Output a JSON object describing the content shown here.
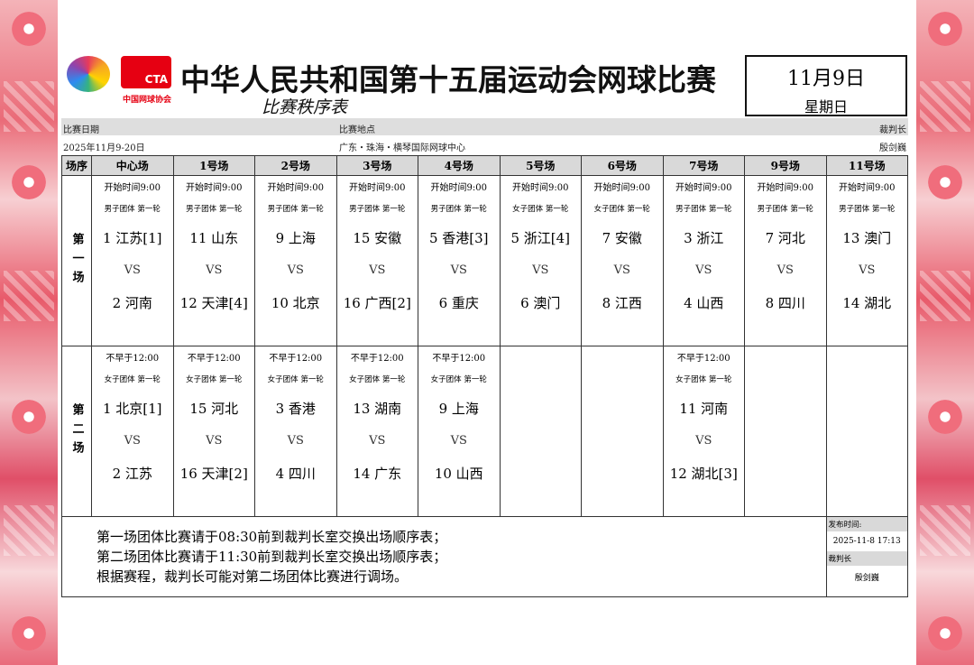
{
  "header": {
    "title": "中华人民共和国第十五届运动会网球比赛",
    "subtitle": "比赛秩序表",
    "date": "11月9日",
    "weekday": "星期日",
    "cta_logo": {
      "abbr": "CTA",
      "name": "中国网球协会"
    }
  },
  "info": {
    "labels": [
      "比赛日期",
      "比赛地点",
      "裁判长"
    ],
    "values": [
      "2025年11月9-20日",
      "广东・珠海・横琴国际网球中心",
      "殷剑巍"
    ]
  },
  "table": {
    "header": [
      "场序",
      "中心场",
      "1号场",
      "2号场",
      "3号场",
      "4号场",
      "5号场",
      "6号场",
      "7号场",
      "9号场",
      "11号场"
    ],
    "sessions": [
      {
        "label": "第一场",
        "matches": [
          {
            "time": "开始时间9:00",
            "event": "男子团体 第一轮",
            "home": "1 江苏[1]",
            "vs": "VS",
            "away": "2 河南"
          },
          {
            "time": "开始时间9:00",
            "event": "男子团体 第一轮",
            "home": "11 山东",
            "vs": "VS",
            "away": "12 天津[4]"
          },
          {
            "time": "开始时间9:00",
            "event": "男子团体 第一轮",
            "home": "9 上海",
            "vs": "VS",
            "away": "10 北京"
          },
          {
            "time": "开始时间9:00",
            "event": "男子团体 第一轮",
            "home": "15 安徽",
            "vs": "VS",
            "away": "16 广西[2]"
          },
          {
            "time": "开始时间9:00",
            "event": "男子团体 第一轮",
            "home": "5 香港[3]",
            "vs": "VS",
            "away": "6 重庆"
          },
          {
            "time": "开始时间9:00",
            "event": "女子团体 第一轮",
            "home": "5 浙江[4]",
            "vs": "VS",
            "away": "6 澳门"
          },
          {
            "time": "开始时间9:00",
            "event": "女子团体 第一轮",
            "home": "7 安徽",
            "vs": "VS",
            "away": "8 江西"
          },
          {
            "time": "开始时间9:00",
            "event": "男子团体 第一轮",
            "home": "3 浙江",
            "vs": "VS",
            "away": "4 山西"
          },
          {
            "time": "开始时间9:00",
            "event": "男子团体 第一轮",
            "home": "7 河北",
            "vs": "VS",
            "away": "8 四川"
          },
          {
            "time": "开始时间9:00",
            "event": "男子团体 第一轮",
            "home": "13 澳门",
            "vs": "VS",
            "away": "14 湖北"
          }
        ]
      },
      {
        "label": "第二场",
        "matches": [
          {
            "time": "不早于12:00",
            "event": "女子团体 第一轮",
            "home": "1 北京[1]",
            "vs": "VS",
            "away": "2 江苏"
          },
          {
            "time": "不早于12:00",
            "event": "女子团体 第一轮",
            "home": "15 河北",
            "vs": "VS",
            "away": "16 天津[2]"
          },
          {
            "time": "不早于12:00",
            "event": "女子团体 第一轮",
            "home": "3 香港",
            "vs": "VS",
            "away": "4 四川"
          },
          {
            "time": "不早于12:00",
            "event": "女子团体 第一轮",
            "home": "13 湖南",
            "vs": "VS",
            "away": "14 广东"
          },
          {
            "time": "不早于12:00",
            "event": "女子团体 第一轮",
            "home": "9 上海",
            "vs": "VS",
            "away": "10 山西"
          },
          null,
          null,
          {
            "time": "不早于12:00",
            "event": "女子团体 第一轮",
            "home": "11 河南",
            "vs": "VS",
            "away": "12 湖北[3]"
          },
          null,
          null
        ]
      }
    ]
  },
  "notes": [
    "第一场团体比赛请于08:30前到裁判长室交换出场顺序表；",
    "第二场团体比赛请于11:30前到裁判长室交换出场顺序表；",
    "根据赛程，裁判长可能对第二场团体比赛进行调场。"
  ],
  "publish": {
    "time_label": "发布时间:",
    "time": "2025-11-8 17:13",
    "referee_label": "裁判长",
    "referee": "殷剑巍"
  }
}
